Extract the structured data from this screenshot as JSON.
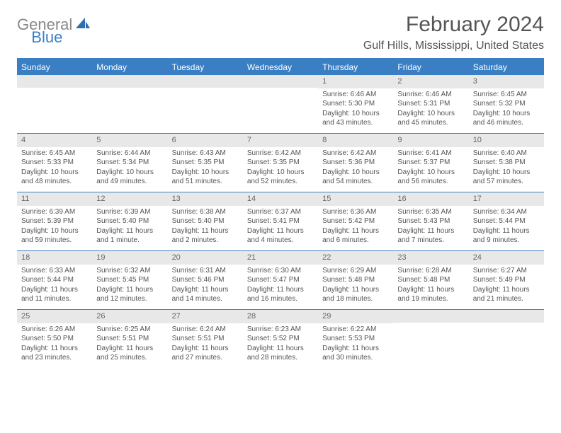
{
  "logo": {
    "part1": "General",
    "part2": "Blue"
  },
  "title": "February 2024",
  "location": "Gulf Hills, Mississippi, United States",
  "header_color": "#3a7fc4",
  "day_bg": "#e8e8e8",
  "days": [
    "Sunday",
    "Monday",
    "Tuesday",
    "Wednesday",
    "Thursday",
    "Friday",
    "Saturday"
  ],
  "weeks": [
    [
      {
        "n": "",
        "sr": "",
        "ss": "",
        "dl": ""
      },
      {
        "n": "",
        "sr": "",
        "ss": "",
        "dl": ""
      },
      {
        "n": "",
        "sr": "",
        "ss": "",
        "dl": ""
      },
      {
        "n": "",
        "sr": "",
        "ss": "",
        "dl": ""
      },
      {
        "n": "1",
        "sr": "Sunrise: 6:46 AM",
        "ss": "Sunset: 5:30 PM",
        "dl": "Daylight: 10 hours and 43 minutes."
      },
      {
        "n": "2",
        "sr": "Sunrise: 6:46 AM",
        "ss": "Sunset: 5:31 PM",
        "dl": "Daylight: 10 hours and 45 minutes."
      },
      {
        "n": "3",
        "sr": "Sunrise: 6:45 AM",
        "ss": "Sunset: 5:32 PM",
        "dl": "Daylight: 10 hours and 46 minutes."
      }
    ],
    [
      {
        "n": "4",
        "sr": "Sunrise: 6:45 AM",
        "ss": "Sunset: 5:33 PM",
        "dl": "Daylight: 10 hours and 48 minutes."
      },
      {
        "n": "5",
        "sr": "Sunrise: 6:44 AM",
        "ss": "Sunset: 5:34 PM",
        "dl": "Daylight: 10 hours and 49 minutes."
      },
      {
        "n": "6",
        "sr": "Sunrise: 6:43 AM",
        "ss": "Sunset: 5:35 PM",
        "dl": "Daylight: 10 hours and 51 minutes."
      },
      {
        "n": "7",
        "sr": "Sunrise: 6:42 AM",
        "ss": "Sunset: 5:35 PM",
        "dl": "Daylight: 10 hours and 52 minutes."
      },
      {
        "n": "8",
        "sr": "Sunrise: 6:42 AM",
        "ss": "Sunset: 5:36 PM",
        "dl": "Daylight: 10 hours and 54 minutes."
      },
      {
        "n": "9",
        "sr": "Sunrise: 6:41 AM",
        "ss": "Sunset: 5:37 PM",
        "dl": "Daylight: 10 hours and 56 minutes."
      },
      {
        "n": "10",
        "sr": "Sunrise: 6:40 AM",
        "ss": "Sunset: 5:38 PM",
        "dl": "Daylight: 10 hours and 57 minutes."
      }
    ],
    [
      {
        "n": "11",
        "sr": "Sunrise: 6:39 AM",
        "ss": "Sunset: 5:39 PM",
        "dl": "Daylight: 10 hours and 59 minutes."
      },
      {
        "n": "12",
        "sr": "Sunrise: 6:39 AM",
        "ss": "Sunset: 5:40 PM",
        "dl": "Daylight: 11 hours and 1 minute."
      },
      {
        "n": "13",
        "sr": "Sunrise: 6:38 AM",
        "ss": "Sunset: 5:40 PM",
        "dl": "Daylight: 11 hours and 2 minutes."
      },
      {
        "n": "14",
        "sr": "Sunrise: 6:37 AM",
        "ss": "Sunset: 5:41 PM",
        "dl": "Daylight: 11 hours and 4 minutes."
      },
      {
        "n": "15",
        "sr": "Sunrise: 6:36 AM",
        "ss": "Sunset: 5:42 PM",
        "dl": "Daylight: 11 hours and 6 minutes."
      },
      {
        "n": "16",
        "sr": "Sunrise: 6:35 AM",
        "ss": "Sunset: 5:43 PM",
        "dl": "Daylight: 11 hours and 7 minutes."
      },
      {
        "n": "17",
        "sr": "Sunrise: 6:34 AM",
        "ss": "Sunset: 5:44 PM",
        "dl": "Daylight: 11 hours and 9 minutes."
      }
    ],
    [
      {
        "n": "18",
        "sr": "Sunrise: 6:33 AM",
        "ss": "Sunset: 5:44 PM",
        "dl": "Daylight: 11 hours and 11 minutes."
      },
      {
        "n": "19",
        "sr": "Sunrise: 6:32 AM",
        "ss": "Sunset: 5:45 PM",
        "dl": "Daylight: 11 hours and 12 minutes."
      },
      {
        "n": "20",
        "sr": "Sunrise: 6:31 AM",
        "ss": "Sunset: 5:46 PM",
        "dl": "Daylight: 11 hours and 14 minutes."
      },
      {
        "n": "21",
        "sr": "Sunrise: 6:30 AM",
        "ss": "Sunset: 5:47 PM",
        "dl": "Daylight: 11 hours and 16 minutes."
      },
      {
        "n": "22",
        "sr": "Sunrise: 6:29 AM",
        "ss": "Sunset: 5:48 PM",
        "dl": "Daylight: 11 hours and 18 minutes."
      },
      {
        "n": "23",
        "sr": "Sunrise: 6:28 AM",
        "ss": "Sunset: 5:48 PM",
        "dl": "Daylight: 11 hours and 19 minutes."
      },
      {
        "n": "24",
        "sr": "Sunrise: 6:27 AM",
        "ss": "Sunset: 5:49 PM",
        "dl": "Daylight: 11 hours and 21 minutes."
      }
    ],
    [
      {
        "n": "25",
        "sr": "Sunrise: 6:26 AM",
        "ss": "Sunset: 5:50 PM",
        "dl": "Daylight: 11 hours and 23 minutes."
      },
      {
        "n": "26",
        "sr": "Sunrise: 6:25 AM",
        "ss": "Sunset: 5:51 PM",
        "dl": "Daylight: 11 hours and 25 minutes."
      },
      {
        "n": "27",
        "sr": "Sunrise: 6:24 AM",
        "ss": "Sunset: 5:51 PM",
        "dl": "Daylight: 11 hours and 27 minutes."
      },
      {
        "n": "28",
        "sr": "Sunrise: 6:23 AM",
        "ss": "Sunset: 5:52 PM",
        "dl": "Daylight: 11 hours and 28 minutes."
      },
      {
        "n": "29",
        "sr": "Sunrise: 6:22 AM",
        "ss": "Sunset: 5:53 PM",
        "dl": "Daylight: 11 hours and 30 minutes."
      },
      {
        "n": "",
        "sr": "",
        "ss": "",
        "dl": ""
      },
      {
        "n": "",
        "sr": "",
        "ss": "",
        "dl": ""
      }
    ]
  ]
}
